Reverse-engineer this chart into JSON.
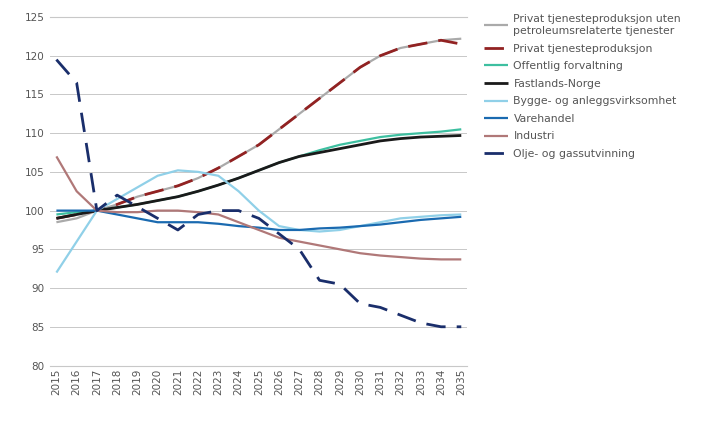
{
  "years": [
    2015,
    2016,
    2017,
    2018,
    2019,
    2020,
    2021,
    2022,
    2023,
    2024,
    2025,
    2026,
    2027,
    2028,
    2029,
    2030,
    2031,
    2032,
    2033,
    2034,
    2035
  ],
  "series": [
    {
      "key": "privat_uten_petro",
      "label": "Privat tjenesteproduksjon uten\npetroleumsrelaterte tjenester",
      "color": "#aaaaaa",
      "linestyle": "-",
      "linewidth": 1.6,
      "values": [
        98.5,
        99.0,
        100.0,
        100.8,
        101.8,
        102.5,
        103.2,
        104.2,
        105.5,
        107.0,
        108.5,
        110.5,
        112.5,
        114.5,
        116.5,
        118.5,
        120.0,
        121.0,
        121.5,
        122.0,
        122.2
      ]
    },
    {
      "key": "privat_tjeneste",
      "label": "Privat tjenesteproduksjon",
      "color": "#922222",
      "linestyle": "--",
      "linewidth": 2.0,
      "dashes": [
        7,
        4
      ],
      "values": [
        99.0,
        99.5,
        100.0,
        100.8,
        101.8,
        102.5,
        103.2,
        104.2,
        105.5,
        107.0,
        108.5,
        110.5,
        112.5,
        114.5,
        116.5,
        118.5,
        120.0,
        121.0,
        121.5,
        122.0,
        121.5
      ]
    },
    {
      "key": "offentlig",
      "label": "Offentlig forvaltning",
      "color": "#3dbfa0",
      "linestyle": "-",
      "linewidth": 1.6,
      "values": [
        99.5,
        99.8,
        100.0,
        100.4,
        100.8,
        101.3,
        101.8,
        102.5,
        103.3,
        104.2,
        105.2,
        106.2,
        107.0,
        107.8,
        108.5,
        109.0,
        109.5,
        109.8,
        110.0,
        110.2,
        110.5
      ]
    },
    {
      "key": "fastlands",
      "label": "Fastlands-Norge",
      "color": "#1a1a1a",
      "linestyle": "-",
      "linewidth": 2.0,
      "values": [
        99.0,
        99.5,
        100.0,
        100.4,
        100.8,
        101.3,
        101.8,
        102.5,
        103.3,
        104.2,
        105.2,
        106.2,
        107.0,
        107.5,
        108.0,
        108.5,
        109.0,
        109.3,
        109.5,
        109.6,
        109.7
      ]
    },
    {
      "key": "bygge",
      "label": "Bygge- og anleggsvirksomhet",
      "color": "#90d0e8",
      "linestyle": "-",
      "linewidth": 1.6,
      "values": [
        92.0,
        96.0,
        100.0,
        101.5,
        103.0,
        104.5,
        105.2,
        105.0,
        104.5,
        102.5,
        100.0,
        98.0,
        97.5,
        97.3,
        97.5,
        98.0,
        98.5,
        99.0,
        99.2,
        99.4,
        99.5
      ]
    },
    {
      "key": "varehandel",
      "label": "Varehandel",
      "color": "#1a6ab0",
      "linestyle": "-",
      "linewidth": 1.6,
      "values": [
        100.0,
        100.0,
        100.0,
        99.5,
        99.0,
        98.5,
        98.5,
        98.5,
        98.3,
        98.0,
        97.8,
        97.5,
        97.5,
        97.7,
        97.8,
        98.0,
        98.2,
        98.5,
        98.8,
        99.0,
        99.2
      ]
    },
    {
      "key": "industri",
      "label": "Industri",
      "color": "#b07878",
      "linestyle": "-",
      "linewidth": 1.6,
      "values": [
        107.0,
        102.5,
        100.0,
        99.8,
        99.8,
        100.0,
        100.0,
        99.8,
        99.5,
        98.5,
        97.5,
        96.5,
        96.0,
        95.5,
        95.0,
        94.5,
        94.2,
        94.0,
        93.8,
        93.7,
        93.7
      ]
    },
    {
      "key": "olje_gass",
      "label": "Olje- og gassutvinning",
      "color": "#1a2e6b",
      "linestyle": "--",
      "linewidth": 2.0,
      "dashes": [
        7,
        4
      ],
      "values": [
        119.5,
        116.5,
        100.0,
        102.0,
        100.5,
        99.0,
        97.5,
        99.5,
        100.0,
        100.0,
        99.0,
        97.0,
        95.0,
        91.0,
        90.5,
        88.0,
        87.5,
        86.5,
        85.5,
        85.0,
        85.0
      ]
    }
  ],
  "xlim": [
    2015,
    2035
  ],
  "ylim": [
    80,
    125
  ],
  "yticks": [
    80,
    85,
    90,
    95,
    100,
    105,
    110,
    115,
    120,
    125
  ],
  "background_color": "#ffffff",
  "grid_color": "#c8c8c8",
  "text_color": "#555555",
  "legend_fontsize": 7.8,
  "tick_fontsize": 7.5
}
